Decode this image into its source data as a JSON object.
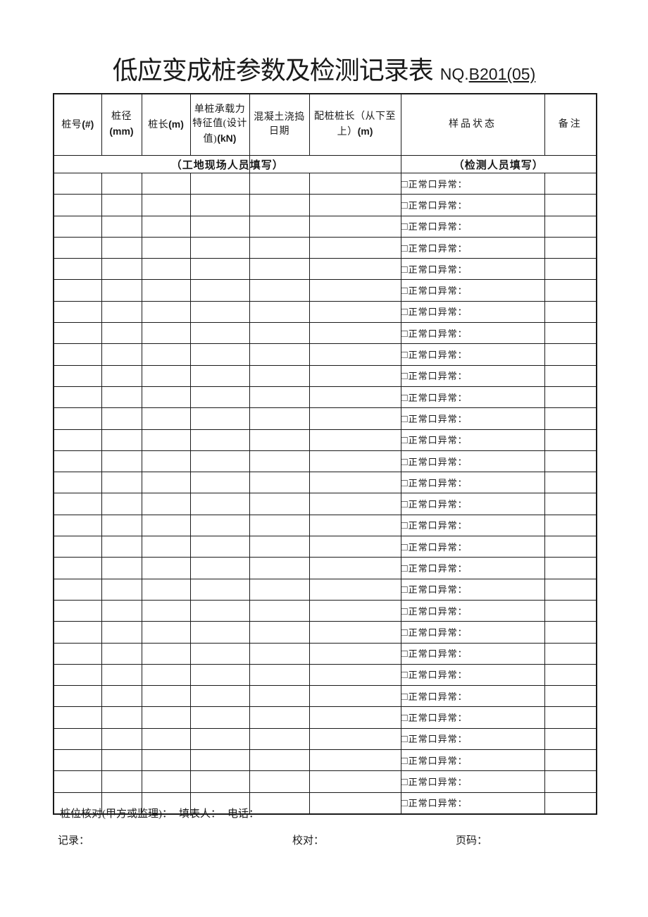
{
  "title": "低应变成桩参数及检测记录表",
  "doc_no": {
    "prefix": "NQ.",
    "value": "B201(05)"
  },
  "table": {
    "headers": [
      {
        "label": "桩号",
        "unit": "(#)"
      },
      {
        "label": "桩径",
        "unit": "(mm)"
      },
      {
        "label": "桩长",
        "unit": "(m)"
      },
      {
        "label": "单桩承载力特征值(设计值)",
        "unit": "(kN)"
      },
      {
        "label": "混凝土浇捣日期",
        "unit": ""
      },
      {
        "label": "配桩桩长（从下至上）",
        "unit": "(m)"
      },
      {
        "label": "样品状态",
        "unit": ""
      },
      {
        "label": "备注",
        "unit": ""
      }
    ],
    "subheaders": {
      "site": "（工地现场人员填写）",
      "inspector": "（检测人员填写）"
    },
    "status_rows": [
      "□正常口异常：",
      "□正常口异常：",
      "□正常口异常：",
      "□正常口异常：",
      "□正常口异常：",
      "□正常口异常：",
      "□正常口异常：",
      "□正常口异常：",
      "□正常口异常：",
      "□正常口异常：",
      "□正常口异常：",
      "□正常口异常：",
      "□正常口异常：",
      "□正常口异常：",
      "□正常口异常：",
      "□正常口异常：",
      "□正常口异常：",
      "□正常口异常：",
      "□正常口异常：",
      "□正常口异常：",
      "□正常口异常：",
      "□正常口异常：",
      "□正常口异常：",
      "□正常口异常：",
      "□正常口异常：",
      "□正常口异常：",
      "□正常口异常：",
      "□正常口异常：",
      "□正常口异常：",
      "□正常口异常："
    ]
  },
  "footer": {
    "pile_check": "桩位核对(甲方或监理)：",
    "filler": "填表人：",
    "phone": "电话：",
    "record": "记录：",
    "proofread": "校对：",
    "page_no": "页码："
  }
}
